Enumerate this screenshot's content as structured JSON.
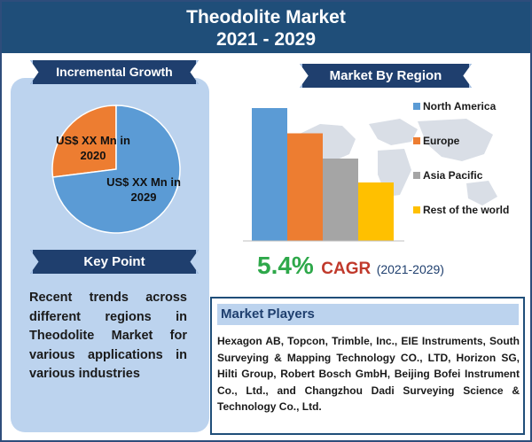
{
  "header": {
    "title_line1": "Theodolite Market",
    "title_line2": "2021 - 2029"
  },
  "incremental_growth": {
    "heading": "Incremental Growth",
    "label_2020": "US$ XX Mn in 2020",
    "label_2029": "US$ XX Mn in 2029"
  },
  "key_point": {
    "heading": "Key Point",
    "text": "Recent trends across different regions in Theodolite Market for various applications in various industries"
  },
  "market_by_region": {
    "heading": "Market By Region"
  },
  "cagr": {
    "value": "5.4%",
    "label": "CAGR",
    "period": "(2021-2029)"
  },
  "market_players": {
    "heading": "Market Players",
    "text": "Hexagon AB, Topcon, Trimble, Inc., EIE Instruments, South Surveying & Mapping Technology CO., LTD, Horizon SG, Hilti Group, Robert Bosch GmbH, Beijing Bofei Instrument Co., Ltd., and Changzhou Dadi Surveying Science & Technology Co., Ltd."
  },
  "colors": {
    "header": "#1f4e79",
    "north_america": "#5b9bd5",
    "europe": "#ed7d31",
    "asia_pacific": "#a5a5a5",
    "rest_of_world": "#ffc000",
    "cagr_green": "#2ea84a",
    "cagr_red": "#c0392b"
  },
  "chart_data": [
    {
      "type": "pie",
      "title": "Incremental Growth",
      "labels": [
        "US$ XX Mn in 2020",
        "US$ XX Mn in 2029"
      ],
      "values": [
        27,
        73
      ],
      "colors": [
        "#ed7d31",
        "#5b9bd5"
      ]
    },
    {
      "type": "bar",
      "title": "Market By Region",
      "categories": [
        "North America",
        "Europe",
        "Asia Pacific",
        "Rest of the world"
      ],
      "values": [
        100,
        81,
        62,
        44
      ],
      "colors": [
        "#5b9bd5",
        "#ed7d31",
        "#a5a5a5",
        "#ffc000"
      ],
      "legend_position": "right"
    }
  ]
}
